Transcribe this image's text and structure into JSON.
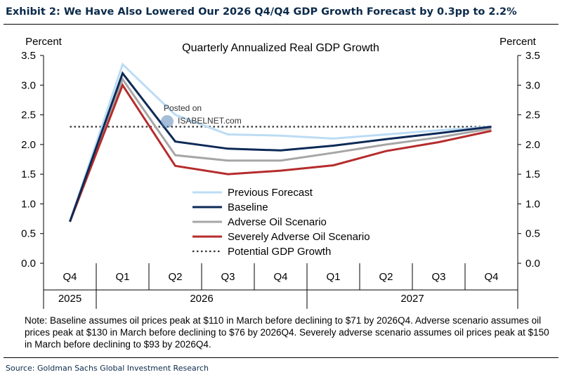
{
  "exhibit_title": "Exhibit 2: We Have Also Lowered Our 2026 Q4/Q4 GDP Growth Forecast by 0.3pp to 2.2%",
  "note": "Note: Baseline assumes oil prices peak at $110 in March before declining to $71 by 2026Q4. Adverse scenario assumes oil prices peak at $130 in March before declining to $76 by 2026Q4. Severely adverse scenario assumes oil prices peak at $150 in March before declining to $93 by 2026Q4.",
  "source": "Source: Goldman Sachs Global Investment Research",
  "watermark": {
    "line1": "Posted on",
    "line2": "ISABELNET.com"
  },
  "chart_data": {
    "type": "line",
    "title": "Quarterly Annualized Real GDP Growth",
    "ylabel_left": "Percent",
    "ylabel_right": "Percent",
    "ylim": [
      0,
      3.5
    ],
    "yticks": [
      "0.0",
      "0.5",
      "1.0",
      "1.5",
      "2.0",
      "2.5",
      "3.0",
      "3.5"
    ],
    "categories": [
      "Q4",
      "Q1",
      "Q2",
      "Q3",
      "Q4",
      "Q1",
      "Q2",
      "Q3",
      "Q4"
    ],
    "years": [
      {
        "label": "2025",
        "span": 1
      },
      {
        "label": "2026",
        "span": 4
      },
      {
        "label": "2027",
        "span": 4
      }
    ],
    "series": [
      {
        "name": "Previous Forecast",
        "color": "#bcdcf4",
        "style": "solid",
        "values": [
          0.7,
          3.35,
          2.5,
          2.17,
          2.15,
          2.1,
          2.17,
          2.24,
          2.3
        ]
      },
      {
        "name": "Baseline",
        "color": "#0d2a57",
        "style": "solid",
        "values": [
          0.7,
          3.2,
          2.05,
          1.93,
          1.9,
          1.98,
          2.09,
          2.19,
          2.3
        ]
      },
      {
        "name": "Adverse Oil Scenario",
        "color": "#a6a6a6",
        "style": "solid",
        "values": [
          0.7,
          3.1,
          1.82,
          1.73,
          1.73,
          1.86,
          2.0,
          2.12,
          2.27
        ]
      },
      {
        "name": "Severely Adverse Oil Scenario",
        "color": "#b52c2c",
        "style": "solid",
        "values": [
          0.7,
          3.0,
          1.64,
          1.5,
          1.56,
          1.65,
          1.89,
          2.04,
          2.23
        ]
      },
      {
        "name": "Potential GDP Growth",
        "color": "#333333",
        "style": "dotted",
        "values": [
          2.3,
          2.3,
          2.3,
          2.3,
          2.3,
          2.3,
          2.3,
          2.3,
          2.3
        ]
      }
    ]
  }
}
